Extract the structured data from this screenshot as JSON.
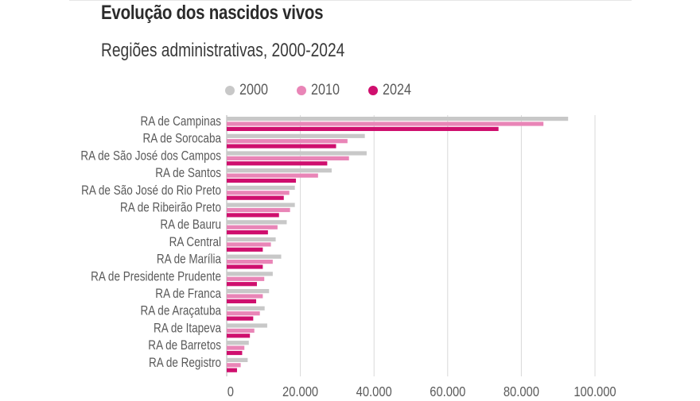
{
  "title": "Evolução dos nascidos vivos",
  "subtitle": "Regiões administrativas, 2000-2024",
  "colors": {
    "2000": "#c8c8c8",
    "2010": "#e985b7",
    "2024": "#cf0f6e",
    "grid": "#d9d9d9",
    "axis": "#b0b0b0",
    "text": "#5a5a5a"
  },
  "chart_data": {
    "type": "bar",
    "orientation": "horizontal",
    "categories": [
      "RA de Campinas",
      "RA de Sorocaba",
      "RA de São José dos Campos",
      "RA de Santos",
      "RA de São José do Rio Preto",
      "RA de Ribeirão Preto",
      "RA de Bauru",
      "RA Central",
      "RA de Marília",
      "RA de Presidente Prudente",
      "RA de Franca",
      "RA de Araçatuba",
      "RA de Itapeva",
      "RA de Barretos",
      "RA de Registro"
    ],
    "series": [
      {
        "name": "2000",
        "color": "#c8c8c8",
        "values": [
          92700,
          37500,
          38000,
          28500,
          18500,
          18500,
          16300,
          13300,
          14800,
          12500,
          11500,
          10300,
          11000,
          6000,
          5700
        ]
      },
      {
        "name": "2010",
        "color": "#e985b7",
        "values": [
          86000,
          32800,
          33200,
          24800,
          17000,
          17200,
          13800,
          12000,
          12500,
          10200,
          9800,
          9000,
          7500,
          4800,
          3800
        ]
      },
      {
        "name": "2024",
        "color": "#cf0f6e",
        "values": [
          73800,
          29700,
          27300,
          18800,
          15500,
          14200,
          11200,
          9800,
          9800,
          8200,
          8000,
          7200,
          6300,
          4200,
          2800
        ]
      }
    ],
    "xlim": [
      0,
      100000
    ],
    "xticks": [
      0,
      20000,
      40000,
      60000,
      80000,
      100000
    ],
    "xtick_labels": [
      "0",
      "20.000",
      "40.000",
      "60.000",
      "80.000",
      "100.000"
    ],
    "legend_position": "top",
    "grid": true
  }
}
